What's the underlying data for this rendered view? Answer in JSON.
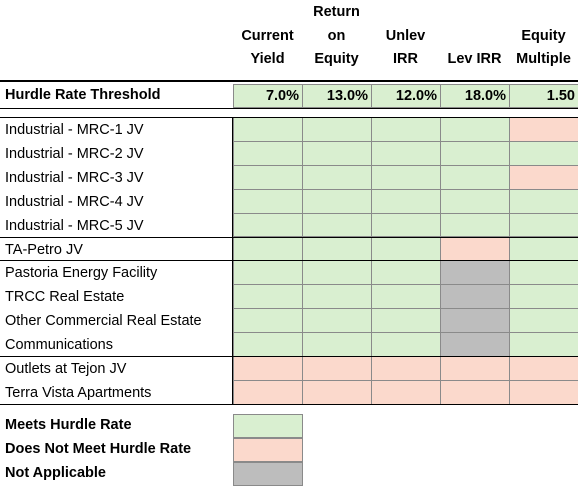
{
  "columns": [
    {
      "lines": [
        "",
        "Current",
        "Yield"
      ]
    },
    {
      "lines": [
        "Return",
        "on",
        "Equity"
      ]
    },
    {
      "lines": [
        "",
        "Unlev",
        "IRR"
      ]
    },
    {
      "lines": [
        "",
        "",
        "Lev IRR"
      ]
    },
    {
      "lines": [
        "",
        "Equity",
        "Multiple"
      ]
    }
  ],
  "threshold": {
    "label": "Hurdle Rate Threshold",
    "values": [
      "7.0%",
      "13.0%",
      "12.0%",
      "18.0%",
      "1.50"
    ]
  },
  "rows": [
    {
      "label": "Industrial - MRC-1 JV",
      "status": [
        "meets",
        "meets",
        "meets",
        "meets",
        "not_meets"
      ]
    },
    {
      "label": "Industrial - MRC-2 JV",
      "status": [
        "meets",
        "meets",
        "meets",
        "meets",
        "meets"
      ]
    },
    {
      "label": "Industrial - MRC-3 JV",
      "status": [
        "meets",
        "meets",
        "meets",
        "meets",
        "not_meets"
      ]
    },
    {
      "label": "Industrial - MRC-4 JV",
      "status": [
        "meets",
        "meets",
        "meets",
        "meets",
        "meets"
      ]
    },
    {
      "label": "Industrial - MRC-5 JV",
      "status": [
        "meets",
        "meets",
        "meets",
        "meets",
        "meets"
      ]
    },
    {
      "label": "TA-Petro JV",
      "status": [
        "meets",
        "meets",
        "meets",
        "not_meets",
        "meets"
      ]
    },
    {
      "label": "Pastoria Energy Facility",
      "status": [
        "meets",
        "meets",
        "meets",
        "na",
        "meets"
      ]
    },
    {
      "label": "TRCC Real Estate",
      "status": [
        "meets",
        "meets",
        "meets",
        "na",
        "meets"
      ]
    },
    {
      "label": "Other Commercial Real Estate",
      "status": [
        "meets",
        "meets",
        "meets",
        "na",
        "meets"
      ]
    },
    {
      "label": "Communications",
      "status": [
        "meets",
        "meets",
        "meets",
        "na",
        "meets"
      ]
    },
    {
      "label": "Outlets at Tejon JV",
      "status": [
        "not_meets",
        "not_meets",
        "not_meets",
        "not_meets",
        "not_meets"
      ]
    },
    {
      "label": "Terra Vista Apartments",
      "status": [
        "not_meets",
        "not_meets",
        "not_meets",
        "not_meets",
        "not_meets"
      ]
    }
  ],
  "legend": [
    {
      "label": "Meets Hurdle Rate",
      "status": "meets"
    },
    {
      "label": "Does Not Meet Hurdle Rate",
      "status": "not_meets"
    },
    {
      "label": "Not Applicable",
      "status": "na"
    }
  ],
  "colors": {
    "meets": "#d9efd0",
    "not_meets": "#fbd9cc",
    "na": "#bdbdbd"
  }
}
